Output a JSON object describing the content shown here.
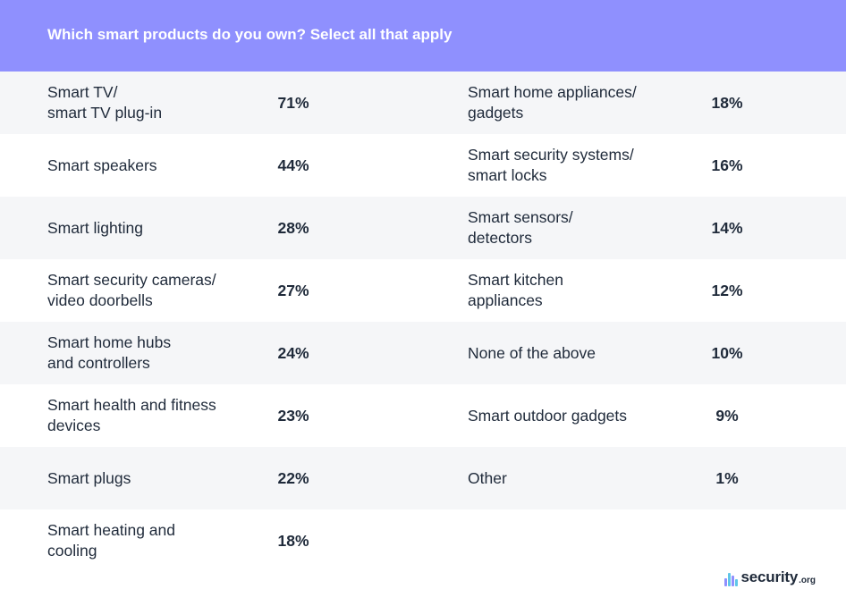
{
  "chart_data": {
    "type": "table",
    "title": "Which smart products do you own? Select all that apply",
    "left_column": [
      {
        "label": "Smart TV/\nsmart TV plug-in",
        "value": "71%"
      },
      {
        "label": "Smart speakers",
        "value": "44%"
      },
      {
        "label": "Smart lighting",
        "value": "28%"
      },
      {
        "label": "Smart security cameras/\nvideo doorbells",
        "value": "27%"
      },
      {
        "label": "Smart home hubs\nand controllers",
        "value": "24%"
      },
      {
        "label": "Smart health and fitness\ndevices",
        "value": "23%"
      },
      {
        "label": "Smart plugs",
        "value": "22%"
      },
      {
        "label": "Smart heating and\ncooling",
        "value": "18%"
      }
    ],
    "right_column": [
      {
        "label": "Smart home appliances/\ngadgets",
        "value": "18%"
      },
      {
        "label": "Smart security systems/\nsmart locks",
        "value": "16%"
      },
      {
        "label": "Smart sensors/\ndetectors",
        "value": "14%"
      },
      {
        "label": "Smart kitchen\nappliances",
        "value": "12%"
      },
      {
        "label": "None of the above",
        "value": "10%"
      },
      {
        "label": "Smart outdoor gadgets",
        "value": "9%"
      },
      {
        "label": "Other",
        "value": "1%"
      }
    ]
  },
  "colors": {
    "header_bg": "#8f90fe",
    "shaded_row": "#f5f6f8",
    "text": "#1f2a3a",
    "logo_bars": [
      "#8f90fe",
      "#5fc6e8",
      "#8f90fe",
      "#5fc6e8"
    ]
  },
  "logo": {
    "word": "security",
    "tld": ".org"
  }
}
